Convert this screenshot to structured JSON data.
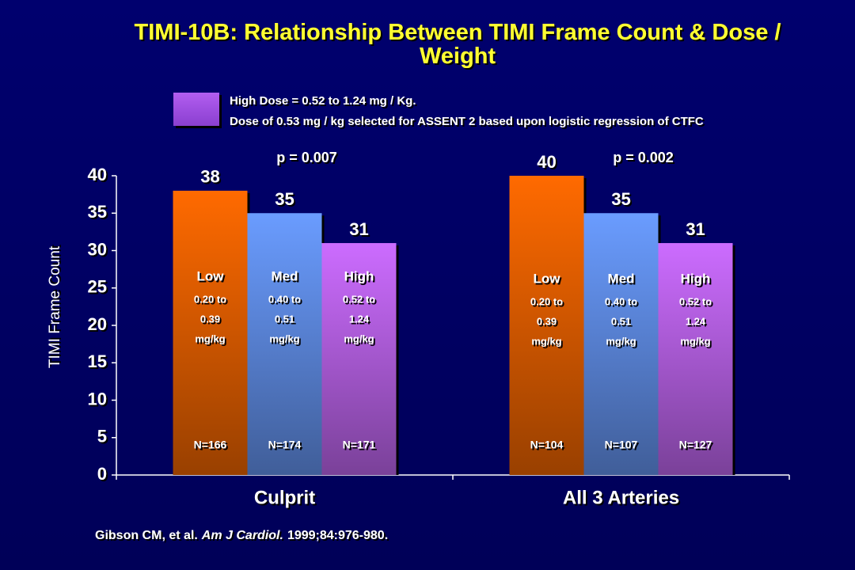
{
  "chart_data": {
    "type": "bar",
    "title": "TIMI-10B: Relationship Between TIMI Frame Count & Dose / Weight",
    "y_label": "TIMI Frame Count",
    "categories": [
      "Culprit",
      "All 3 Arteries"
    ],
    "p_values": [
      "p = 0.007",
      "p = 0.002"
    ],
    "series": [
      {
        "name": "Low",
        "color": "#ff6a00",
        "values": [
          38,
          40
        ],
        "dose_lines": [
          "0.20 to",
          "0.39",
          "mg/kg"
        ],
        "n_labels": [
          "N=166",
          "N=104"
        ]
      },
      {
        "name": "Med",
        "color": "#6a9cff",
        "values": [
          35,
          35
        ],
        "dose_lines": [
          "0.40 to",
          "0.51",
          "mg/kg"
        ],
        "n_labels": [
          "N=174",
          "N=107"
        ]
      },
      {
        "name": "High",
        "color": "#cc6cff",
        "values": [
          31,
          31
        ],
        "dose_lines": [
          "0.52 to",
          "1.24",
          "mg/kg"
        ],
        "n_labels": [
          "N=171",
          "N=127"
        ]
      }
    ],
    "ylim": [
      0,
      40
    ],
    "yticks": [
      0,
      5,
      10,
      15,
      20,
      25,
      30,
      35,
      40
    ],
    "note": {
      "color": "#b25ef0",
      "lines": [
        "High Dose = 0.52 to 1.24 mg / Kg.",
        "Dose of 0.53 mg / kg selected for ASSENT 2 based upon logistic regression of CTFC"
      ]
    },
    "citation": [
      "Gibson CM, et al.",
      "Am J Cardiol.",
      "1999;84:976-980."
    ]
  }
}
